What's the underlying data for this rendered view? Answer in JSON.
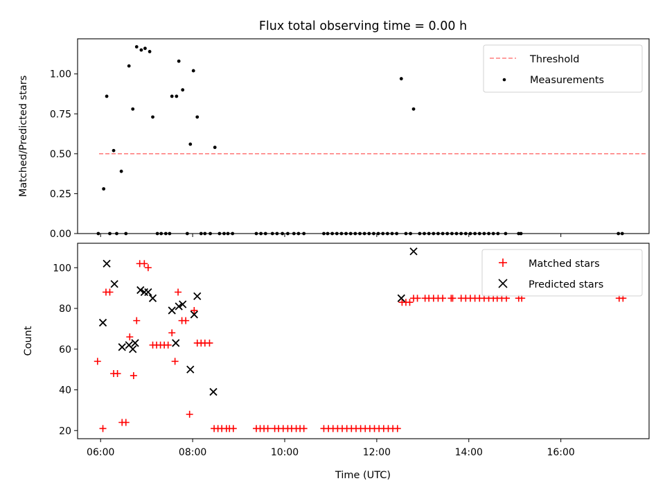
{
  "figure": {
    "title": "Flux total observing time = 0.00 h",
    "xlabel": "Time (UTC)"
  },
  "chart_data": [
    {
      "type": "scatter",
      "xlabel": "",
      "ylabel": "Matched/Predicted stars",
      "xlim": [
        "05:30",
        "17:55"
      ],
      "ylim": [
        0,
        1.22
      ],
      "yticks": [
        0.0,
        0.25,
        0.5,
        0.75,
        1.0
      ],
      "ytick_labels": [
        "0.00",
        "0.25",
        "0.50",
        "0.75",
        "1.00"
      ],
      "legend": {
        "location": "upper right",
        "entries": [
          "Threshold",
          "Measurements"
        ]
      },
      "threshold": {
        "name": "Threshold",
        "value": 0.5,
        "x_range": [
          "05:58",
          "17:53"
        ],
        "color": "#ff7f7f",
        "style": "dashed"
      },
      "series": [
        {
          "name": "Measurements",
          "color": "#000000",
          "marker": "dot",
          "points": [
            [
              "05:57",
              0.0
            ],
            [
              "06:04",
              0.28
            ],
            [
              "06:08",
              0.86
            ],
            [
              "06:12",
              0.0
            ],
            [
              "06:17",
              0.52
            ],
            [
              "06:21",
              0.0
            ],
            [
              "06:27",
              0.39
            ],
            [
              "06:33",
              0.0
            ],
            [
              "06:37",
              1.05
            ],
            [
              "06:42",
              0.78
            ],
            [
              "06:47",
              1.17
            ],
            [
              "06:53",
              1.15
            ],
            [
              "06:58",
              1.16
            ],
            [
              "07:04",
              1.14
            ],
            [
              "07:08",
              0.73
            ],
            [
              "07:14",
              0.0
            ],
            [
              "07:19",
              0.0
            ],
            [
              "07:25",
              0.0
            ],
            [
              "07:30",
              0.0
            ],
            [
              "07:33",
              0.86
            ],
            [
              "07:39",
              0.86
            ],
            [
              "07:42",
              1.08
            ],
            [
              "07:47",
              0.9
            ],
            [
              "07:53",
              0.0
            ],
            [
              "07:57",
              0.56
            ],
            [
              "08:01",
              1.02
            ],
            [
              "08:06",
              0.73
            ],
            [
              "08:11",
              0.0
            ],
            [
              "08:16",
              0.0
            ],
            [
              "08:23",
              0.0
            ],
            [
              "08:29",
              0.54
            ],
            [
              "08:35",
              0.0
            ],
            [
              "08:41",
              0.0
            ],
            [
              "08:46",
              0.0
            ],
            [
              "08:52",
              0.0
            ],
            [
              "09:23",
              0.0
            ],
            [
              "09:29",
              0.0
            ],
            [
              "09:35",
              0.0
            ],
            [
              "09:44",
              0.0
            ],
            [
              "09:50",
              0.0
            ],
            [
              "09:57",
              0.0
            ],
            [
              "10:04",
              0.0
            ],
            [
              "10:12",
              0.0
            ],
            [
              "10:18",
              0.0
            ],
            [
              "10:25",
              0.0
            ],
            [
              "10:51",
              0.0
            ],
            [
              "10:56",
              0.0
            ],
            [
              "11:02",
              0.0
            ],
            [
              "11:08",
              0.0
            ],
            [
              "11:14",
              0.0
            ],
            [
              "11:20",
              0.0
            ],
            [
              "11:26",
              0.0
            ],
            [
              "11:32",
              0.0
            ],
            [
              "11:38",
              0.0
            ],
            [
              "11:44",
              0.0
            ],
            [
              "11:50",
              0.0
            ],
            [
              "11:56",
              0.0
            ],
            [
              "12:02",
              0.0
            ],
            [
              "12:08",
              0.0
            ],
            [
              "12:14",
              0.0
            ],
            [
              "12:20",
              0.0
            ],
            [
              "12:26",
              0.0
            ],
            [
              "12:32",
              0.97
            ],
            [
              "12:38",
              0.0
            ],
            [
              "12:44",
              0.0
            ],
            [
              "12:48",
              0.78
            ],
            [
              "12:56",
              0.0
            ],
            [
              "13:02",
              0.0
            ],
            [
              "13:08",
              0.0
            ],
            [
              "13:14",
              0.0
            ],
            [
              "13:20",
              0.0
            ],
            [
              "13:26",
              0.0
            ],
            [
              "13:32",
              0.0
            ],
            [
              "13:38",
              0.0
            ],
            [
              "13:44",
              0.0
            ],
            [
              "13:50",
              0.0
            ],
            [
              "13:56",
              0.0
            ],
            [
              "14:02",
              0.0
            ],
            [
              "14:08",
              0.0
            ],
            [
              "14:14",
              0.0
            ],
            [
              "14:20",
              0.0
            ],
            [
              "14:26",
              0.0
            ],
            [
              "14:32",
              0.0
            ],
            [
              "14:38",
              0.0
            ],
            [
              "14:48",
              0.0
            ],
            [
              "15:05",
              0.0
            ],
            [
              "15:08",
              0.0
            ],
            [
              "17:15",
              0.0
            ],
            [
              "17:20",
              0.0
            ]
          ]
        }
      ]
    },
    {
      "type": "scatter",
      "xlabel": "Time (UTC)",
      "ylabel": "Count",
      "xlim": [
        "05:30",
        "17:55"
      ],
      "ylim": [
        16,
        112
      ],
      "yticks": [
        20,
        40,
        60,
        80,
        100
      ],
      "ytick_labels": [
        "20",
        "40",
        "60",
        "80",
        "100"
      ],
      "xticks": [
        "06:00",
        "08:00",
        "10:00",
        "12:00",
        "14:00",
        "16:00"
      ],
      "xtick_labels": [
        "06:00",
        "08:00",
        "10:00",
        "12:00",
        "14:00",
        "16:00"
      ],
      "legend": {
        "location": "upper right",
        "entries": [
          "Matched stars",
          "Predicted stars"
        ]
      },
      "series": [
        {
          "name": "Matched stars",
          "color": "#ff0000",
          "marker": "plus",
          "points": [
            [
              "05:56",
              54
            ],
            [
              "06:03",
              21
            ],
            [
              "06:07",
              88
            ],
            [
              "06:12",
              88
            ],
            [
              "06:17",
              48
            ],
            [
              "06:22",
              48
            ],
            [
              "06:28",
              24
            ],
            [
              "06:33",
              24
            ],
            [
              "06:38",
              66
            ],
            [
              "06:43",
              47
            ],
            [
              "06:47",
              74
            ],
            [
              "06:51",
              102
            ],
            [
              "06:57",
              102
            ],
            [
              "07:02",
              100
            ],
            [
              "07:08",
              62
            ],
            [
              "07:13",
              62
            ],
            [
              "07:18",
              62
            ],
            [
              "07:23",
              62
            ],
            [
              "07:28",
              62
            ],
            [
              "07:33",
              68
            ],
            [
              "07:37",
              54
            ],
            [
              "07:41",
              88
            ],
            [
              "07:46",
              74
            ],
            [
              "07:51",
              74
            ],
            [
              "07:56",
              28
            ],
            [
              "08:02",
              79
            ],
            [
              "08:06",
              63
            ],
            [
              "08:11",
              63
            ],
            [
              "08:16",
              63
            ],
            [
              "08:22",
              63
            ],
            [
              "08:28",
              21
            ],
            [
              "08:33",
              21
            ],
            [
              "08:38",
              21
            ],
            [
              "08:44",
              21
            ],
            [
              "08:48",
              21
            ],
            [
              "08:53",
              21
            ],
            [
              "09:23",
              21
            ],
            [
              "09:28",
              21
            ],
            [
              "09:33",
              21
            ],
            [
              "09:38",
              21
            ],
            [
              "09:47",
              21
            ],
            [
              "09:52",
              21
            ],
            [
              "09:58",
              21
            ],
            [
              "10:04",
              21
            ],
            [
              "10:09",
              21
            ],
            [
              "10:15",
              21
            ],
            [
              "10:20",
              21
            ],
            [
              "10:25",
              21
            ],
            [
              "10:51",
              21
            ],
            [
              "10:57",
              21
            ],
            [
              "11:03",
              21
            ],
            [
              "11:09",
              21
            ],
            [
              "11:15",
              21
            ],
            [
              "11:21",
              21
            ],
            [
              "11:27",
              21
            ],
            [
              "11:33",
              21
            ],
            [
              "11:39",
              21
            ],
            [
              "11:45",
              21
            ],
            [
              "11:51",
              21
            ],
            [
              "11:57",
              21
            ],
            [
              "12:03",
              21
            ],
            [
              "12:09",
              21
            ],
            [
              "12:15",
              21
            ],
            [
              "12:21",
              21
            ],
            [
              "12:27",
              21
            ],
            [
              "12:33",
              83
            ],
            [
              "12:38",
              83
            ],
            [
              "12:43",
              83
            ],
            [
              "12:48",
              85
            ],
            [
              "12:53",
              85
            ],
            [
              "13:03",
              85
            ],
            [
              "13:08",
              85
            ],
            [
              "13:14",
              85
            ],
            [
              "13:20",
              85
            ],
            [
              "13:26",
              85
            ],
            [
              "13:37",
              85
            ],
            [
              "13:39",
              85
            ],
            [
              "13:50",
              85
            ],
            [
              "13:56",
              85
            ],
            [
              "14:02",
              85
            ],
            [
              "14:08",
              85
            ],
            [
              "14:14",
              85
            ],
            [
              "14:20",
              85
            ],
            [
              "14:26",
              85
            ],
            [
              "14:32",
              85
            ],
            [
              "14:37",
              85
            ],
            [
              "14:43",
              85
            ],
            [
              "14:49",
              85
            ],
            [
              "15:05",
              85
            ],
            [
              "15:09",
              85
            ],
            [
              "17:16",
              85
            ],
            [
              "17:21",
              85
            ]
          ]
        },
        {
          "name": "Predicted stars",
          "color": "#000000",
          "marker": "x",
          "points": [
            [
              "06:03",
              73
            ],
            [
              "06:08",
              102
            ],
            [
              "06:18",
              92
            ],
            [
              "06:28",
              61
            ],
            [
              "06:37",
              62
            ],
            [
              "06:42",
              60
            ],
            [
              "06:45",
              63
            ],
            [
              "06:52",
              89
            ],
            [
              "06:57",
              88
            ],
            [
              "07:02",
              88
            ],
            [
              "07:08",
              85
            ],
            [
              "07:33",
              79
            ],
            [
              "07:38",
              63
            ],
            [
              "07:42",
              81
            ],
            [
              "07:47",
              82
            ],
            [
              "07:57",
              50
            ],
            [
              "08:02",
              77
            ],
            [
              "08:06",
              86
            ],
            [
              "08:27",
              39
            ],
            [
              "12:32",
              85
            ],
            [
              "12:48",
              108
            ]
          ]
        }
      ]
    }
  ]
}
